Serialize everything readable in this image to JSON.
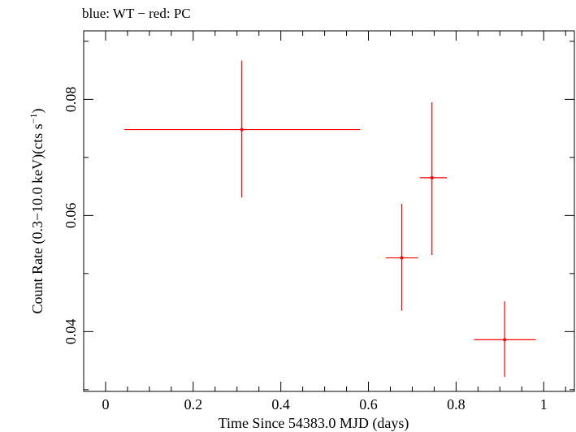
{
  "chart_data": {
    "type": "scatter",
    "title": "blue: WT − red: PC",
    "xlabel": "Time Since 54383.0 MJD (days)",
    "ylabel_main": "Count Rate (0.3−10.0 keV)(cts s",
    "ylabel_sup": "−1",
    "ylabel_end": ")",
    "xlim": [
      -0.05,
      1.07
    ],
    "ylim": [
      0.0297,
      0.0918
    ],
    "x_ticks_major": [
      0,
      0.2,
      0.4,
      0.6,
      0.8,
      1
    ],
    "x_tick_labels": [
      "0",
      "0.2",
      "0.4",
      "0.6",
      "0.8",
      "1"
    ],
    "y_ticks_major": [
      0.04,
      0.06,
      0.08
    ],
    "y_tick_labels": [
      "0.04",
      "0.06",
      "0.08"
    ],
    "grid": false,
    "series": [
      {
        "color": "#ff0000",
        "points": [
          {
            "x": 0.311,
            "y": 0.0748,
            "xerr": [
              0.268,
              0.27
            ],
            "yerr": [
              0.0117,
              0.0119
            ]
          },
          {
            "x": 0.676,
            "y": 0.0527,
            "xerr": [
              0.036,
              0.037
            ],
            "yerr": [
              0.0091,
              0.0093
            ]
          },
          {
            "x": 0.745,
            "y": 0.0665,
            "xerr": [
              0.028,
              0.034
            ],
            "yerr": [
              0.0133,
              0.013
            ]
          },
          {
            "x": 0.911,
            "y": 0.0386,
            "xerr": [
              0.07,
              0.071
            ],
            "yerr": [
              0.0064,
              0.0066
            ]
          }
        ]
      }
    ]
  }
}
